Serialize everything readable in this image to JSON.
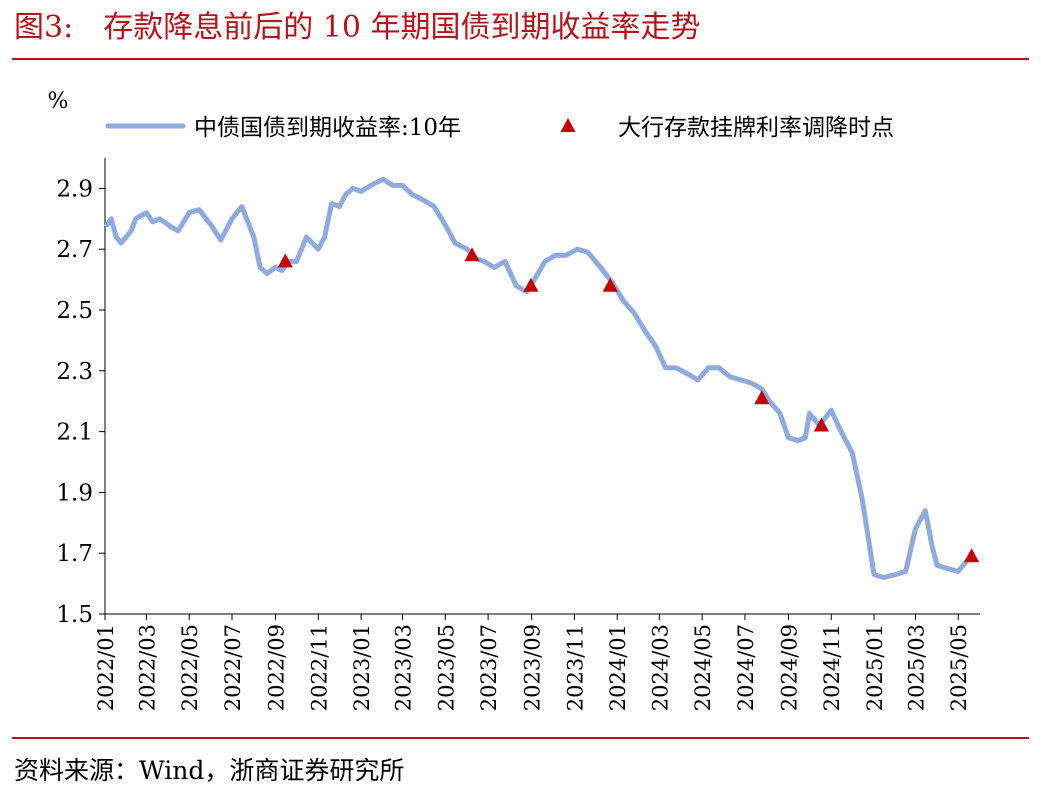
{
  "figure": {
    "label": "图3:",
    "title": "存款降息前后的 10 年期国债到期收益率走势",
    "source": "资料来源：Wind，浙商证券研究所"
  },
  "colors": {
    "title": "#b2151b",
    "rule": "#b2151b",
    "line": "#8faadc",
    "marker": "#c00000",
    "axis": "#000000"
  },
  "chart_data": {
    "type": "line",
    "ylabel": "%",
    "ylim": [
      1.5,
      3.0
    ],
    "yticks": [
      "1.5",
      "1.7",
      "1.9",
      "2.1",
      "2.3",
      "2.5",
      "2.7",
      "2.9"
    ],
    "xticks": [
      "2022/01",
      "2022/03",
      "2022/05",
      "2022/07",
      "2022/09",
      "2022/11",
      "2023/01",
      "2023/03",
      "2023/05",
      "2023/07",
      "2023/09",
      "2023/11",
      "2024/01",
      "2024/03",
      "2024/05",
      "2024/07",
      "2024/09",
      "2024/11",
      "2025/01",
      "2025/03",
      "2025/05"
    ],
    "xrange": [
      "2022-01-01",
      "2025-06-01"
    ],
    "legend": {
      "position": "top",
      "series_label": "中债国债到期收益率:10年",
      "marker_label": "大行存款挂牌利率调降时点"
    },
    "series": [
      {
        "name": "中债国债到期收益率:10年",
        "x": [
          "2022-01-04",
          "2022-01-10",
          "2022-01-17",
          "2022-01-24",
          "2022-02-07",
          "2022-02-14",
          "2022-02-21",
          "2022-03-01",
          "2022-03-10",
          "2022-03-20",
          "2022-04-01",
          "2022-04-15",
          "2022-05-01",
          "2022-05-15",
          "2022-06-01",
          "2022-06-15",
          "2022-07-01",
          "2022-07-15",
          "2022-08-01",
          "2022-08-10",
          "2022-08-20",
          "2022-09-01",
          "2022-09-10",
          "2022-09-20",
          "2022-10-01",
          "2022-10-15",
          "2022-11-01",
          "2022-11-10",
          "2022-11-20",
          "2022-12-01",
          "2022-12-10",
          "2022-12-20",
          "2023-01-01",
          "2023-01-15",
          "2023-02-01",
          "2023-02-15",
          "2023-03-01",
          "2023-03-15",
          "2023-04-01",
          "2023-04-15",
          "2023-05-01",
          "2023-05-15",
          "2023-06-01",
          "2023-06-13",
          "2023-06-25",
          "2023-07-10",
          "2023-07-25",
          "2023-08-10",
          "2023-08-25",
          "2023-09-05",
          "2023-09-20",
          "2023-10-05",
          "2023-10-20",
          "2023-11-05",
          "2023-11-20",
          "2023-12-01",
          "2023-12-15",
          "2023-12-25",
          "2024-01-10",
          "2024-01-25",
          "2024-02-10",
          "2024-02-25",
          "2024-03-10",
          "2024-03-25",
          "2024-04-10",
          "2024-04-25",
          "2024-05-10",
          "2024-05-25",
          "2024-06-10",
          "2024-06-25",
          "2024-07-10",
          "2024-07-25",
          "2024-08-05",
          "2024-08-20",
          "2024-09-01",
          "2024-09-15",
          "2024-09-25",
          "2024-10-01",
          "2024-10-15",
          "2024-11-01",
          "2024-11-15",
          "2024-12-01",
          "2024-12-15",
          "2025-01-01",
          "2025-01-15",
          "2025-02-01",
          "2025-02-15",
          "2025-03-01",
          "2025-03-15",
          "2025-03-25",
          "2025-04-01",
          "2025-04-15",
          "2025-05-01",
          "2025-05-15"
        ],
        "y": [
          2.78,
          2.8,
          2.74,
          2.72,
          2.76,
          2.8,
          2.81,
          2.82,
          2.79,
          2.8,
          2.78,
          2.76,
          2.82,
          2.83,
          2.78,
          2.73,
          2.8,
          2.84,
          2.74,
          2.64,
          2.62,
          2.64,
          2.63,
          2.66,
          2.66,
          2.74,
          2.7,
          2.74,
          2.85,
          2.84,
          2.88,
          2.9,
          2.89,
          2.91,
          2.93,
          2.91,
          2.91,
          2.88,
          2.86,
          2.84,
          2.78,
          2.72,
          2.7,
          2.67,
          2.66,
          2.64,
          2.66,
          2.58,
          2.56,
          2.6,
          2.66,
          2.68,
          2.68,
          2.7,
          2.69,
          2.66,
          2.62,
          2.59,
          2.53,
          2.49,
          2.43,
          2.38,
          2.31,
          2.31,
          2.29,
          2.27,
          2.31,
          2.31,
          2.28,
          2.27,
          2.26,
          2.24,
          2.2,
          2.16,
          2.08,
          2.07,
          2.08,
          2.16,
          2.12,
          2.17,
          2.1,
          2.03,
          1.88,
          1.63,
          1.62,
          1.63,
          1.64,
          1.78,
          1.84,
          1.72,
          1.66,
          1.65,
          1.64,
          1.68
        ]
      }
    ],
    "markers": {
      "name": "大行存款挂牌利率调降时点",
      "x": [
        "2022-09-15",
        "2023-06-08",
        "2023-08-31",
        "2023-12-22",
        "2024-07-25",
        "2024-10-18",
        "2025-05-20"
      ],
      "y": [
        2.66,
        2.68,
        2.58,
        2.58,
        2.21,
        2.12,
        1.69
      ]
    }
  }
}
